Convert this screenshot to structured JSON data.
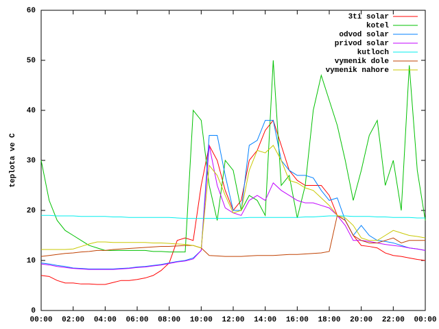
{
  "chart_data": {
    "type": "line",
    "ylabel": "teplota ve C",
    "x": [
      0,
      0.5,
      1,
      1.5,
      2,
      2.5,
      3,
      3.5,
      4,
      4.5,
      5,
      5.5,
      6,
      6.5,
      7,
      7.5,
      8,
      8.5,
      9,
      9.5,
      10,
      10.5,
      11,
      11.5,
      12,
      12.5,
      13,
      13.5,
      14,
      14.5,
      15,
      15.5,
      16,
      16.5,
      17,
      17.5,
      18,
      18.5,
      19,
      19.5,
      20,
      20.5,
      21,
      21.5,
      22,
      22.5,
      23,
      23.5,
      24
    ],
    "series": [
      {
        "name": "3ti solar",
        "color": "#ff0000",
        "values": [
          7,
          6.8,
          6,
          5.5,
          5.5,
          5.3,
          5.3,
          5.2,
          5.2,
          5.6,
          6,
          6,
          6.2,
          6.5,
          7,
          8,
          9.5,
          14,
          14.5,
          14,
          25,
          33,
          30,
          24,
          20,
          22,
          30,
          32,
          36,
          38,
          33,
          28,
          26,
          25,
          25,
          25,
          23,
          19,
          18,
          15,
          13,
          12.8,
          12.5,
          11.5,
          11,
          10.8,
          10.5,
          10.2,
          10
        ]
      },
      {
        "name": "kotel",
        "color": "#00c000",
        "values": [
          30,
          22,
          18,
          16,
          15,
          14,
          13,
          12.5,
          12,
          12,
          12,
          12,
          12,
          12,
          11.8,
          11.8,
          11.7,
          11.7,
          11.7,
          40,
          38,
          25,
          18,
          30,
          28,
          20,
          23,
          22,
          19,
          50,
          25,
          27,
          18.5,
          25,
          40,
          47,
          42,
          37,
          30,
          22,
          28,
          35,
          38,
          25,
          30,
          20,
          49,
          28,
          18
        ]
      },
      {
        "name": "odvod solar",
        "color": "#0080ff",
        "values": [
          9.5,
          9.3,
          9,
          8.8,
          8.5,
          8.4,
          8.3,
          8.3,
          8.3,
          8.3,
          8.4,
          8.5,
          8.7,
          8.8,
          9,
          9.2,
          9.5,
          9.8,
          10,
          10.5,
          12,
          35,
          35,
          27,
          20,
          20,
          33,
          34,
          38,
          38,
          30,
          28,
          27,
          27,
          26.5,
          24,
          22,
          22.5,
          18,
          15,
          17,
          15,
          14,
          13.8,
          13.5,
          13,
          12.5,
          12.3,
          12
        ]
      },
      {
        "name": "privod solar",
        "color": "#c000ff",
        "values": [
          9.3,
          9.1,
          8.8,
          8.6,
          8.4,
          8.3,
          8.2,
          8.2,
          8.2,
          8.2,
          8.3,
          8.4,
          8.6,
          8.7,
          8.9,
          9.1,
          9.4,
          9.7,
          9.9,
          10.3,
          12,
          33,
          25,
          20.5,
          19.5,
          19,
          22,
          23,
          22,
          25.5,
          24,
          23,
          22,
          21.5,
          21.5,
          21,
          20.5,
          19,
          17,
          14,
          14,
          13.8,
          13.5,
          13.2,
          13,
          12.8,
          12.5,
          12.3,
          12
        ]
      },
      {
        "name": "kutloch",
        "color": "#00eeee",
        "values": [
          19,
          19,
          18.9,
          18.9,
          18.9,
          18.8,
          18.8,
          18.8,
          18.8,
          18.7,
          18.7,
          18.6,
          18.6,
          18.6,
          18.6,
          18.6,
          18.6,
          18.5,
          18.4,
          18.4,
          18.4,
          18.4,
          18.4,
          18.4,
          18.4,
          18.5,
          18.6,
          18.6,
          18.6,
          18.6,
          18.6,
          18.6,
          18.6,
          18.7,
          18.7,
          18.8,
          18.9,
          18.9,
          18.9,
          18.8,
          18.8,
          18.8,
          18.7,
          18.7,
          18.6,
          18.6,
          18.6,
          18.5,
          18.5
        ]
      },
      {
        "name": "vymenik dole",
        "color": "#c04000",
        "values": [
          10.8,
          11,
          11.2,
          11.4,
          11.5,
          11.7,
          11.8,
          12,
          12,
          12.2,
          12.3,
          12.4,
          12.5,
          12.6,
          12.7,
          12.8,
          12.8,
          12.9,
          13,
          13,
          12.5,
          11,
          10.9,
          10.8,
          10.8,
          10.8,
          10.9,
          11,
          11,
          11,
          11.1,
          11.2,
          11.2,
          11.3,
          11.4,
          11.5,
          11.8,
          19,
          18,
          15,
          14,
          13.5,
          13.5,
          14,
          14.5,
          13.5,
          14,
          14,
          14
        ]
      },
      {
        "name": "vymenik nahore",
        "color": "#c8c800",
        "values": [
          12.2,
          12.2,
          12.2,
          12.2,
          12.3,
          12.8,
          13.3,
          13.7,
          13.7,
          13.6,
          13.6,
          13.6,
          13.6,
          13.6,
          13.5,
          13.5,
          13.4,
          13.3,
          13.2,
          13,
          12.5,
          29,
          27,
          23,
          19.5,
          20,
          28,
          32,
          31.5,
          33,
          30,
          26,
          25.5,
          24.5,
          24,
          22.5,
          21,
          19,
          18.5,
          17,
          14.5,
          14,
          14,
          15,
          16,
          15.5,
          15,
          14.8,
          14.5
        ]
      }
    ],
    "xlim": [
      0,
      24
    ],
    "xticks": [
      {
        "value": 0,
        "label": "00:00"
      },
      {
        "value": 2,
        "label": "02:00"
      },
      {
        "value": 4,
        "label": "04:00"
      },
      {
        "value": 6,
        "label": "06:00"
      },
      {
        "value": 8,
        "label": "08:00"
      },
      {
        "value": 10,
        "label": "10:00"
      },
      {
        "value": 12,
        "label": "12:00"
      },
      {
        "value": 14,
        "label": "14:00"
      },
      {
        "value": 16,
        "label": "16:00"
      },
      {
        "value": 18,
        "label": "18:00"
      },
      {
        "value": 20,
        "label": "20:00"
      },
      {
        "value": 22,
        "label": "22:00"
      },
      {
        "value": 24,
        "label": "00:00"
      }
    ],
    "ylim": [
      0,
      60
    ],
    "yticks": [
      0,
      10,
      20,
      30,
      40,
      50,
      60
    ],
    "grid": false,
    "legend": "top-right"
  }
}
